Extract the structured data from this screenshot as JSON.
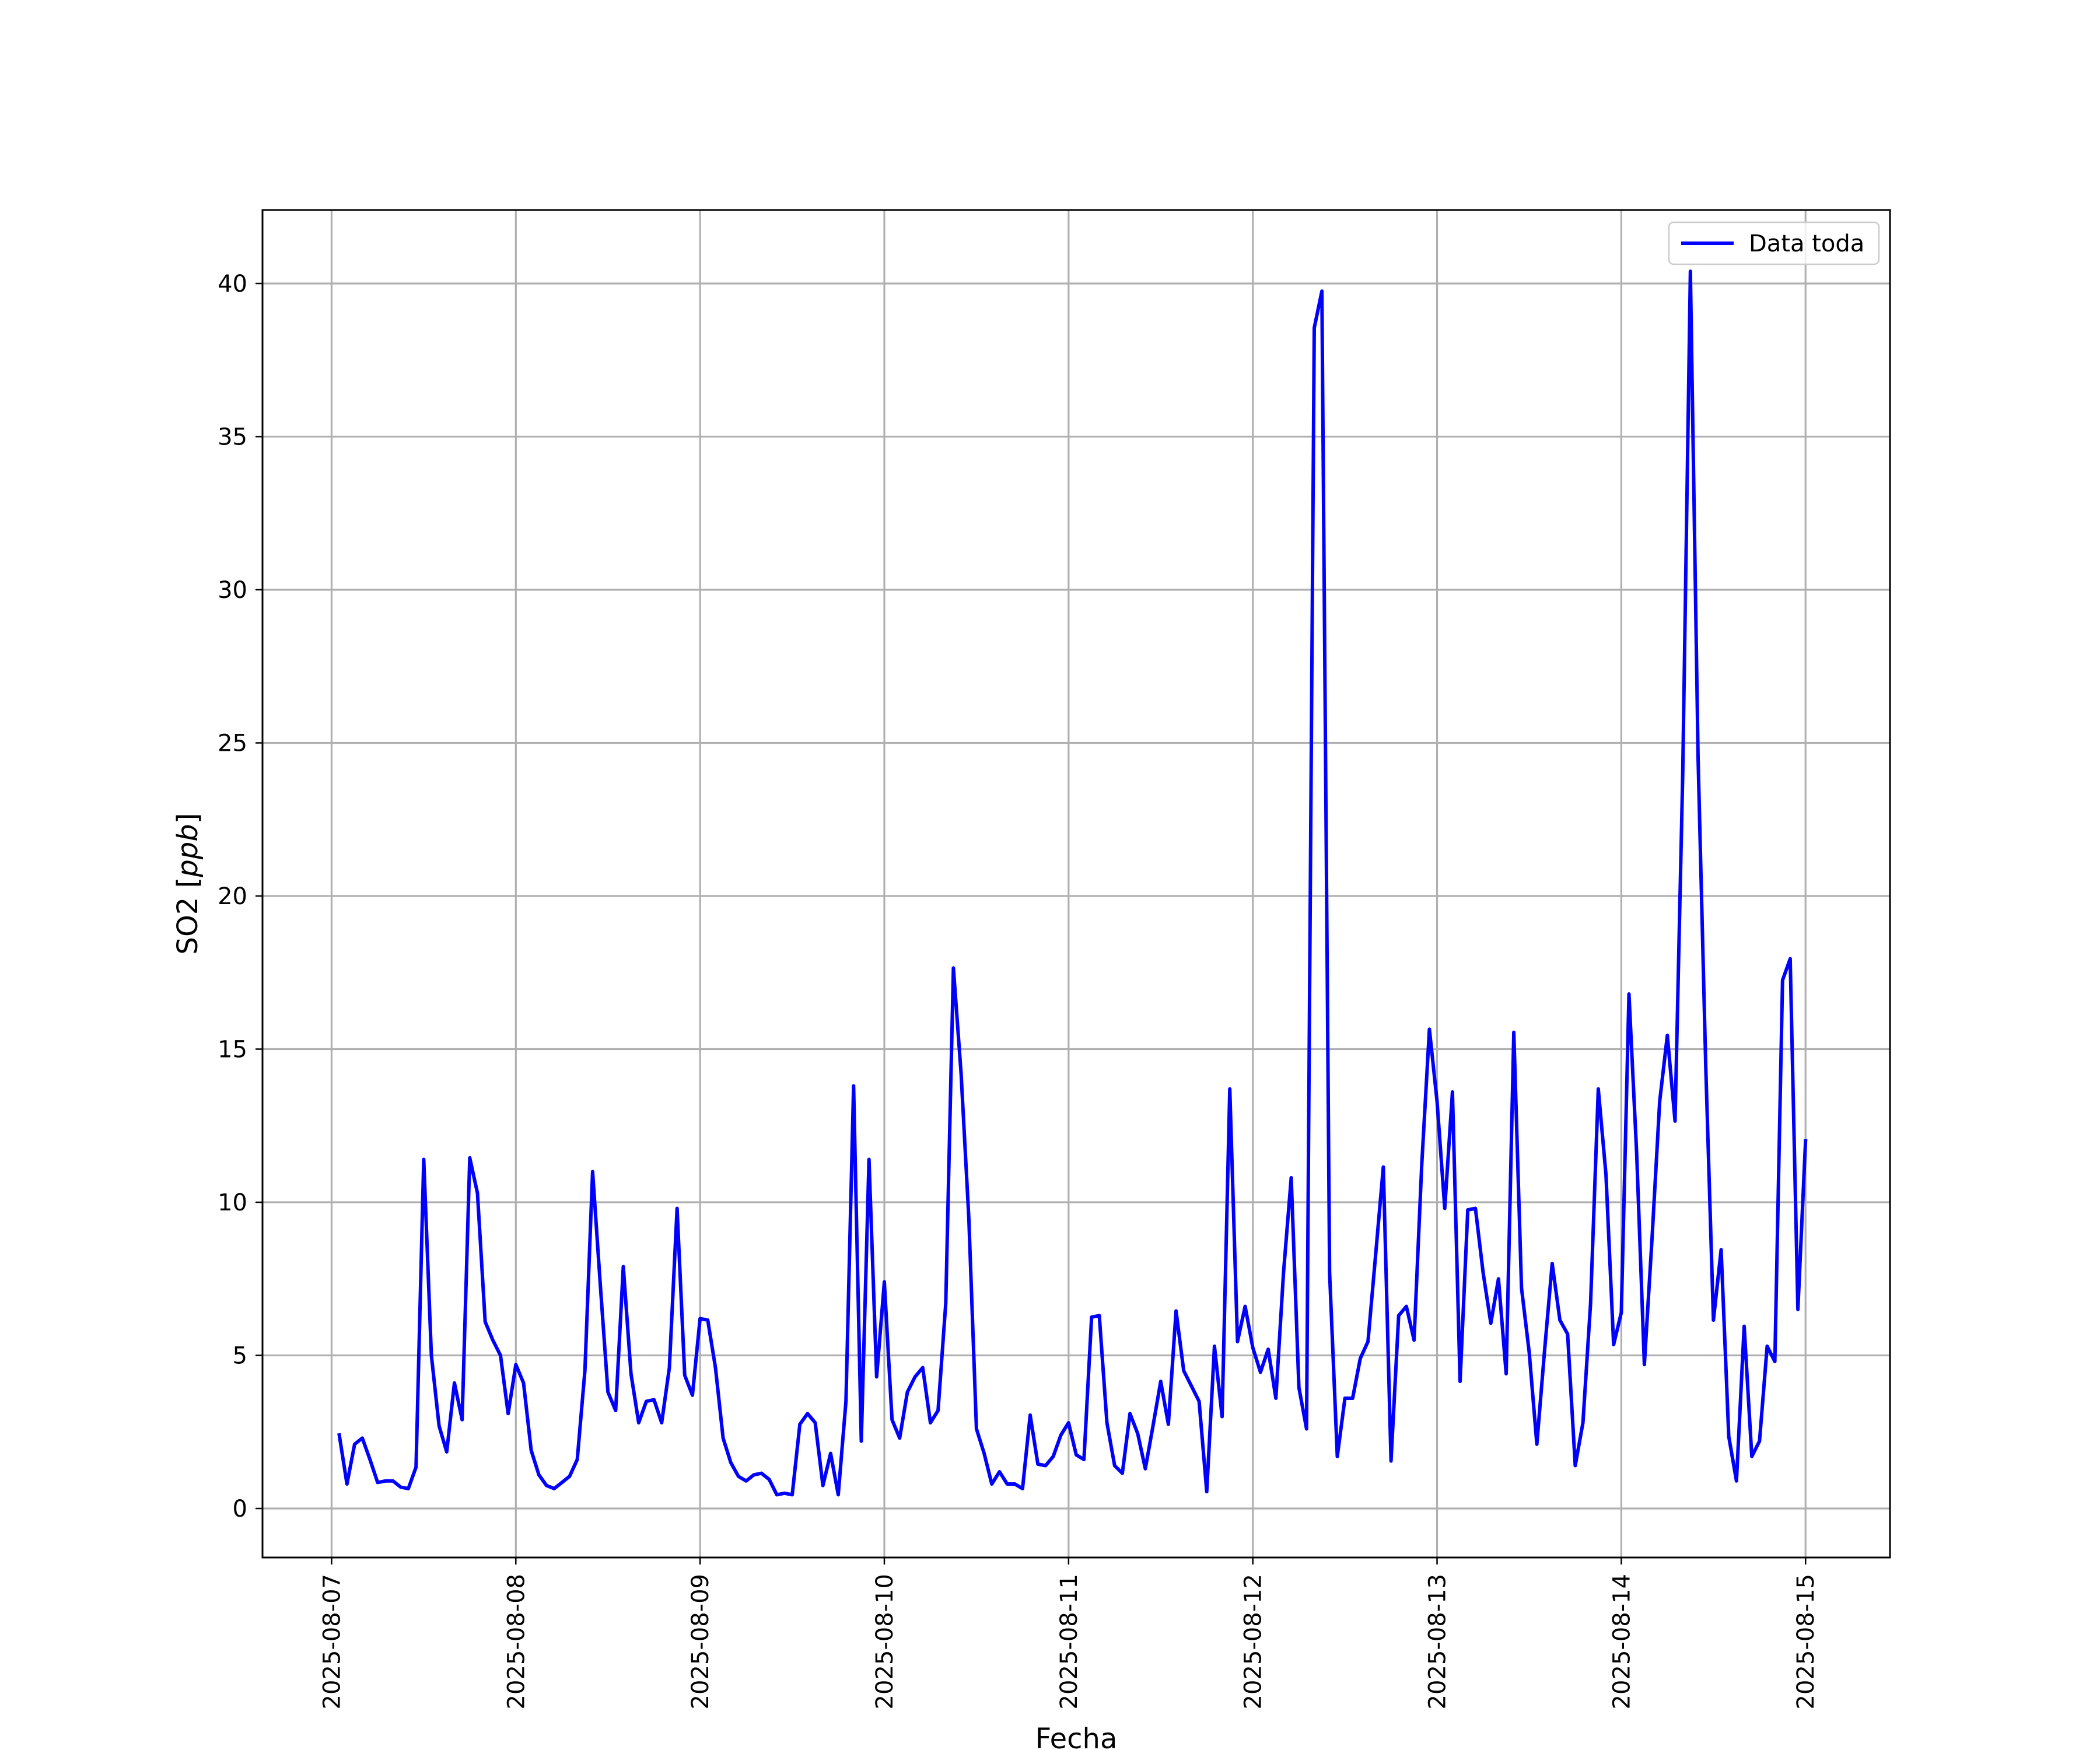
{
  "chart_data": {
    "type": "line",
    "xlabel": "Fecha",
    "ylabel_main": "SO2 [",
    "ylabel_unit": "ppb",
    "ylabel_end": "]",
    "xlim": [
      "2025-08-06T15:00",
      "2025-08-15T11:00"
    ],
    "ylim": [
      -1.6,
      42.4
    ],
    "x_ticks": [
      "2025-08-07",
      "2025-08-08",
      "2025-08-09",
      "2025-08-10",
      "2025-08-11",
      "2025-08-12",
      "2025-08-13",
      "2025-08-14",
      "2025-08-15"
    ],
    "y_ticks": [
      0,
      5,
      10,
      15,
      20,
      25,
      30,
      35,
      40
    ],
    "grid": true,
    "legend_position": "top-right",
    "series": [
      {
        "name": "Data toda",
        "color": "#0000ff",
        "x_start": "2025-08-07T01:00",
        "x_step_hours": 1,
        "values": [
          2.4,
          0.8,
          2.1,
          2.3,
          1.6,
          0.85,
          0.9,
          0.9,
          0.7,
          0.65,
          1.35,
          11.4,
          5.0,
          2.7,
          1.85,
          4.1,
          2.9,
          11.45,
          10.3,
          6.1,
          5.5,
          5.0,
          3.1,
          4.7,
          4.1,
          1.9,
          1.1,
          0.75,
          0.65,
          0.85,
          1.05,
          1.6,
          4.5,
          11.0,
          7.3,
          3.8,
          3.2,
          7.9,
          4.4,
          2.8,
          3.5,
          3.55,
          2.8,
          4.6,
          9.8,
          4.35,
          3.7,
          6.2,
          6.15,
          4.6,
          2.3,
          1.5,
          1.05,
          0.9,
          1.1,
          1.15,
          0.95,
          0.45,
          0.5,
          0.45,
          2.75,
          3.1,
          2.8,
          0.75,
          1.8,
          0.45,
          3.5,
          13.8,
          2.2,
          11.4,
          4.3,
          7.4,
          2.9,
          2.3,
          3.8,
          4.3,
          4.6,
          2.8,
          3.2,
          6.7,
          17.65,
          14.2,
          9.5,
          2.6,
          1.8,
          0.8,
          1.2,
          0.8,
          0.8,
          0.65,
          3.05,
          1.45,
          1.4,
          1.7,
          2.4,
          2.8,
          1.75,
          1.6,
          6.25,
          6.3,
          2.8,
          1.4,
          1.15,
          3.1,
          2.45,
          1.3,
          2.7,
          4.15,
          2.75,
          6.45,
          4.5,
          4.0,
          3.5,
          0.55,
          5.3,
          3.0,
          13.7,
          5.45,
          6.6,
          5.25,
          4.45,
          5.2,
          3.6,
          7.7,
          10.8,
          3.95,
          2.6,
          38.55,
          39.75,
          7.7,
          1.7,
          3.6,
          3.6,
          4.9,
          5.45,
          8.3,
          11.15,
          1.55,
          6.3,
          6.6,
          5.5,
          11.2,
          15.65,
          13.3,
          9.8,
          13.6,
          4.15,
          9.75,
          9.8,
          7.7,
          6.05,
          7.5,
          4.4,
          15.55,
          7.2,
          5.1,
          2.1,
          5.15,
          8.0,
          6.15,
          5.7,
          1.4,
          2.8,
          6.7,
          13.7,
          10.9,
          5.35,
          6.4,
          16.8,
          11.6,
          4.7,
          8.8,
          13.3,
          15.45,
          12.65,
          24.0,
          40.4,
          24.5,
          14.4,
          6.15,
          8.45,
          2.35,
          0.9,
          5.95,
          1.7,
          2.2,
          5.3,
          4.8,
          17.25,
          17.95,
          6.5,
          12.0
        ]
      }
    ]
  }
}
